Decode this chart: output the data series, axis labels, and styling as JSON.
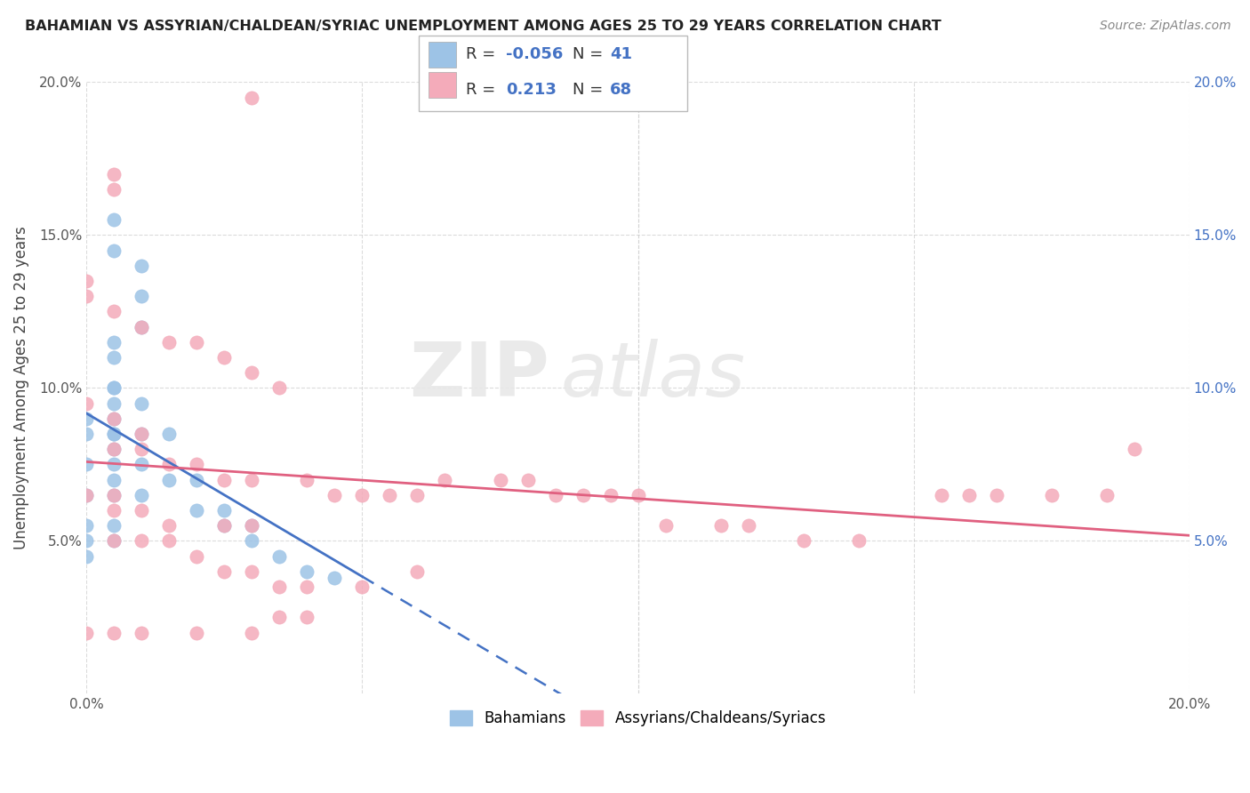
{
  "title": "BAHAMIAN VS ASSYRIAN/CHALDEAN/SYRIAC UNEMPLOYMENT AMONG AGES 25 TO 29 YEARS CORRELATION CHART",
  "source": "Source: ZipAtlas.com",
  "ylabel": "Unemployment Among Ages 25 to 29 years",
  "xlim": [
    0.0,
    0.2
  ],
  "ylim": [
    0.0,
    0.2
  ],
  "x_ticks": [
    0.0,
    0.05,
    0.1,
    0.15,
    0.2
  ],
  "y_ticks": [
    0.05,
    0.1,
    0.15,
    0.2
  ],
  "x_tick_labels": [
    "0.0%",
    "",
    "",
    "",
    "20.0%"
  ],
  "y_tick_labels": [
    "5.0%",
    "10.0%",
    "15.0%",
    "20.0%"
  ],
  "legend_labels": [
    "Bahamians",
    "Assyrians/Chaldeans/Syriacs"
  ],
  "r_blue": "-0.056",
  "n_blue": "41",
  "r_pink": "0.213",
  "n_pink": "68",
  "blue_color": "#9DC3E6",
  "pink_color": "#F4ABBA",
  "blue_line_color": "#4472C4",
  "pink_line_color": "#E06080",
  "watermark_text": "ZIP",
  "watermark_text2": "atlas",
  "grid_color": "#CCCCCC",
  "background_color": "#FFFFFF",
  "blue_scatter_x": [
    0.005,
    0.005,
    0.01,
    0.01,
    0.01,
    0.005,
    0.005,
    0.005,
    0.005,
    0.005,
    0.005,
    0.005,
    0.005,
    0.005,
    0.005,
    0.0,
    0.0,
    0.0,
    0.0,
    0.0,
    0.0,
    0.0,
    0.005,
    0.005,
    0.005,
    0.005,
    0.01,
    0.01,
    0.01,
    0.01,
    0.015,
    0.015,
    0.02,
    0.02,
    0.025,
    0.025,
    0.03,
    0.03,
    0.035,
    0.04,
    0.045
  ],
  "blue_scatter_y": [
    0.155,
    0.145,
    0.14,
    0.13,
    0.12,
    0.115,
    0.11,
    0.1,
    0.095,
    0.085,
    0.08,
    0.075,
    0.07,
    0.065,
    0.055,
    0.09,
    0.085,
    0.075,
    0.065,
    0.055,
    0.05,
    0.045,
    0.1,
    0.09,
    0.085,
    0.05,
    0.095,
    0.085,
    0.075,
    0.065,
    0.085,
    0.07,
    0.07,
    0.06,
    0.06,
    0.055,
    0.055,
    0.05,
    0.045,
    0.04,
    0.038
  ],
  "pink_scatter_x": [
    0.03,
    0.005,
    0.005,
    0.0,
    0.0,
    0.005,
    0.01,
    0.015,
    0.02,
    0.025,
    0.03,
    0.035,
    0.0,
    0.005,
    0.01,
    0.005,
    0.01,
    0.015,
    0.02,
    0.025,
    0.03,
    0.0,
    0.005,
    0.005,
    0.01,
    0.015,
    0.025,
    0.03,
    0.005,
    0.01,
    0.015,
    0.02,
    0.025,
    0.03,
    0.035,
    0.04,
    0.04,
    0.045,
    0.05,
    0.055,
    0.06,
    0.065,
    0.075,
    0.08,
    0.085,
    0.09,
    0.095,
    0.1,
    0.105,
    0.115,
    0.12,
    0.13,
    0.14,
    0.155,
    0.16,
    0.165,
    0.175,
    0.185,
    0.19,
    0.0,
    0.005,
    0.01,
    0.02,
    0.03,
    0.035,
    0.04,
    0.05,
    0.06
  ],
  "pink_scatter_y": [
    0.195,
    0.17,
    0.165,
    0.135,
    0.13,
    0.125,
    0.12,
    0.115,
    0.115,
    0.11,
    0.105,
    0.1,
    0.095,
    0.09,
    0.085,
    0.08,
    0.08,
    0.075,
    0.075,
    0.07,
    0.07,
    0.065,
    0.065,
    0.06,
    0.06,
    0.055,
    0.055,
    0.055,
    0.05,
    0.05,
    0.05,
    0.045,
    0.04,
    0.04,
    0.035,
    0.035,
    0.07,
    0.065,
    0.065,
    0.065,
    0.065,
    0.07,
    0.07,
    0.07,
    0.065,
    0.065,
    0.065,
    0.065,
    0.055,
    0.055,
    0.055,
    0.05,
    0.05,
    0.065,
    0.065,
    0.065,
    0.065,
    0.065,
    0.08,
    0.02,
    0.02,
    0.02,
    0.02,
    0.02,
    0.025,
    0.025,
    0.035,
    0.04
  ]
}
